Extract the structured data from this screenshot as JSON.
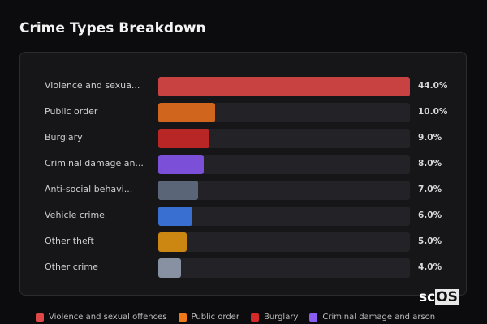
{
  "title": "Crime Types Breakdown",
  "chart_data": {
    "type": "bar",
    "orientation": "horizontal",
    "title": "Crime Types Breakdown",
    "categories": [
      "Violence and sexua...",
      "Public order",
      "Burglary",
      "Criminal damage an...",
      "Anti-social behavi...",
      "Vehicle crime",
      "Other theft",
      "Other crime"
    ],
    "values": [
      44.0,
      10.0,
      9.0,
      8.0,
      7.0,
      6.0,
      5.0,
      4.0
    ],
    "value_labels": [
      "44.0%",
      "10.0%",
      "9.0%",
      "8.0%",
      "7.0%",
      "6.0%",
      "5.0%",
      "4.0%"
    ],
    "colors": [
      "#c94242",
      "#d0661e",
      "#b82626",
      "#7b4fd8",
      "#5b6578",
      "#3a6fd2",
      "#cc8712",
      "#8791a1"
    ],
    "xlim": [
      0,
      44
    ],
    "unit": "%",
    "grid": false,
    "legend_position": "bottom"
  },
  "legend": [
    {
      "label": "Violence and sexual offences",
      "color": "#e04848"
    },
    {
      "label": "Public order",
      "color": "#f07a1a"
    },
    {
      "label": "Burglary",
      "color": "#d42a2a"
    },
    {
      "label": "Criminal damage and arson",
      "color": "#8a5cf0"
    }
  ],
  "logo": {
    "text_a": "sc",
    "text_b": "OS"
  }
}
